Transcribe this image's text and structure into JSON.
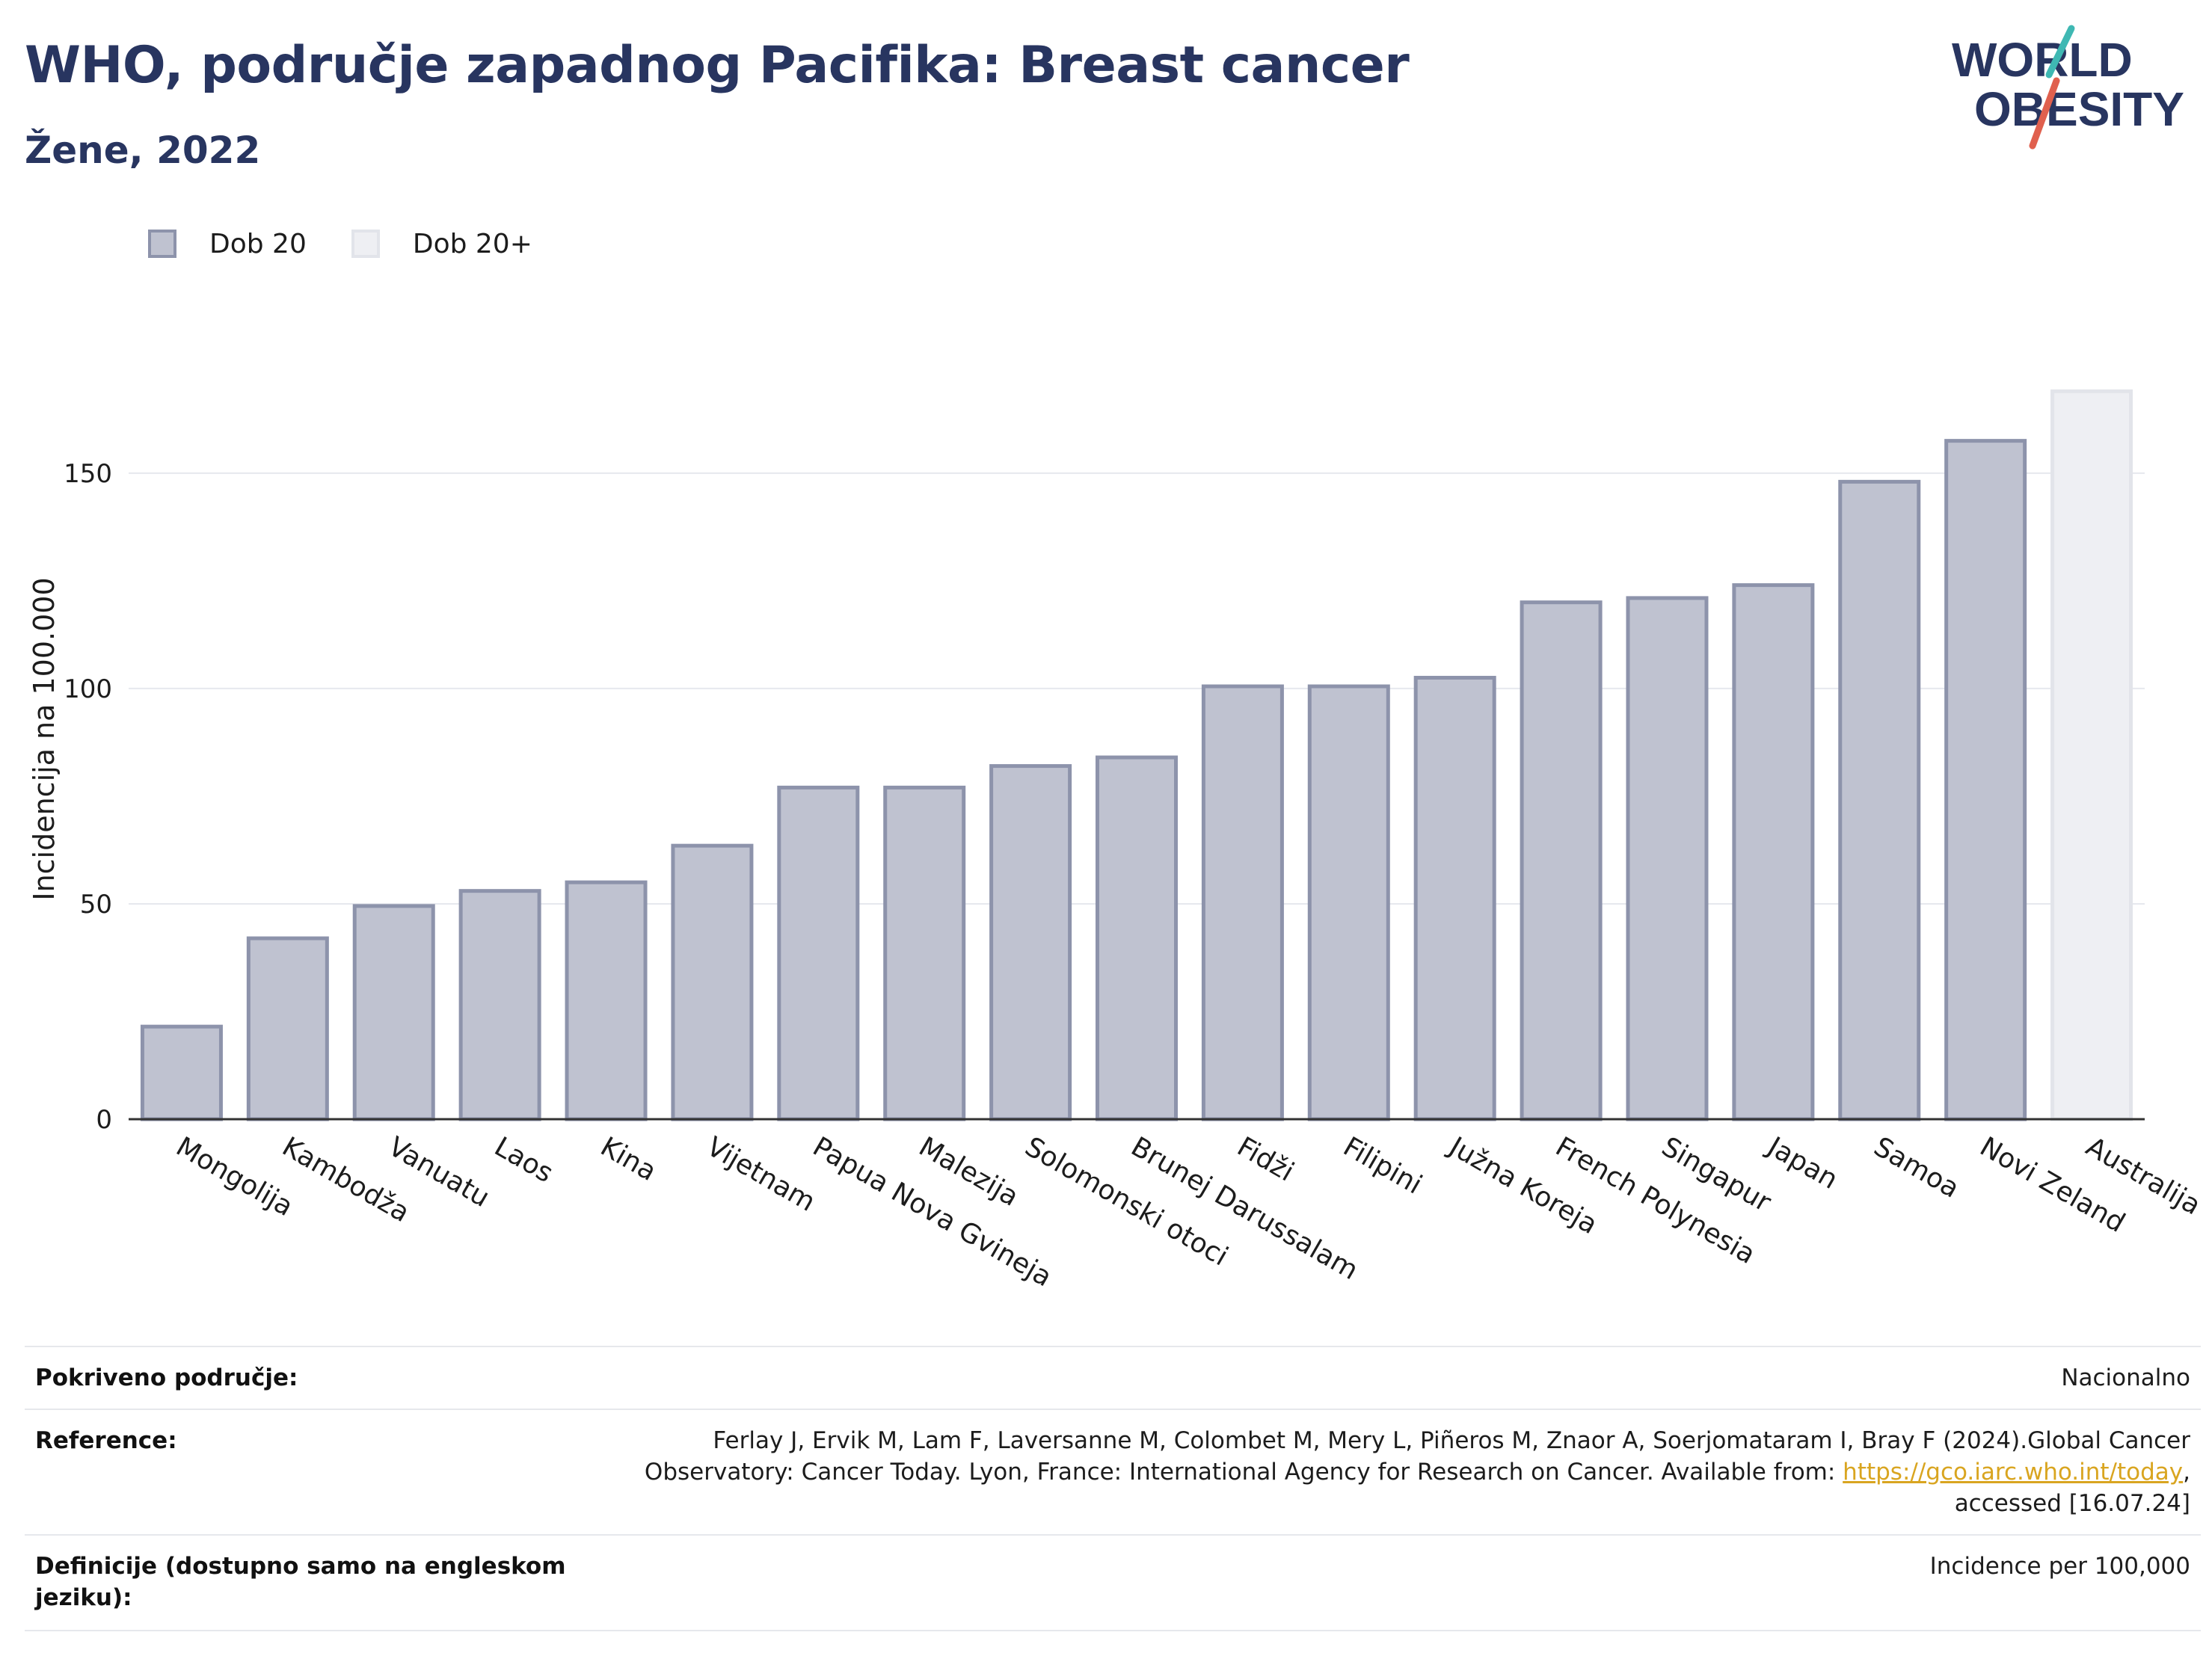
{
  "header": {
    "title": "WHO, područje zapadnog Pacifika: Breast cancer",
    "subtitle": "Žene, 2022"
  },
  "logo": {
    "line1": "WORLD",
    "line2": "OBESITY",
    "accent_teal": "#3fb8b3",
    "accent_red": "#e0604e",
    "text_color": "#283560"
  },
  "legend": {
    "items": [
      {
        "label": "Dob 20",
        "color": "#bfc2d0",
        "border": "#8d93ab"
      },
      {
        "label": "Dob 20+",
        "color": "#eeeff3",
        "border": "#e2e4ea"
      }
    ]
  },
  "chart_data": {
    "type": "bar",
    "title": "WHO, područje zapadnog Pacifika: Breast cancer",
    "subtitle": "Žene, 2022",
    "xlabel": "",
    "ylabel": "Incidencija na 100.000",
    "ylim": [
      0,
      180
    ],
    "yticks": [
      0,
      50,
      100,
      150
    ],
    "grid": true,
    "legend_position": "top-left",
    "categories": [
      "Mongolija",
      "Kambodža",
      "Vanuatu",
      "Laos",
      "Kina",
      "Vijetnam",
      "Papua Nova Gvineja",
      "Malezija",
      "Solomonski otoci",
      "Brunej Darussalam",
      "Fidži",
      "Filipini",
      "Južna Koreja",
      "French Polynesia",
      "Singapur",
      "Japan",
      "Samoa",
      "Novi Zeland",
      "Australija"
    ],
    "values": [
      21.5,
      42,
      49.5,
      53,
      55,
      63.5,
      77,
      77,
      82,
      84,
      100.5,
      100.5,
      102.5,
      120,
      121,
      124,
      148,
      157.5,
      169
    ],
    "series_index": [
      0,
      0,
      0,
      0,
      0,
      0,
      0,
      0,
      0,
      0,
      0,
      0,
      0,
      0,
      0,
      0,
      0,
      0,
      1
    ],
    "series": [
      {
        "name": "Dob 20",
        "fill": "#bfc2d0",
        "stroke": "#8d93ab"
      },
      {
        "name": "Dob 20+",
        "fill": "#eeeff3",
        "stroke": "#e2e4ea"
      }
    ]
  },
  "metadata": {
    "rows": [
      {
        "key": "Pokriveno područje:",
        "value": "Nacionalno"
      },
      {
        "key": "Reference:",
        "value_line1": "Ferlay J, Ervik M, Lam F, Laversanne M, Colombet M, Mery L, Piñeros M, Znaor A, Soerjomataram I, Bray F (2024).Global Cancer",
        "value_line2_pre": "Observatory: Cancer Today. Lyon, France: International Agency for Research on Cancer. Available from: ",
        "link": "https://gco.iarc.who.int/today",
        "value_line2_post": ",",
        "value_line3": "accessed [16.07.24]"
      },
      {
        "key_line1": "Definicije (dostupno samo na engleskom",
        "key_line2": "jeziku):",
        "value": "Incidence per 100,000"
      }
    ]
  }
}
